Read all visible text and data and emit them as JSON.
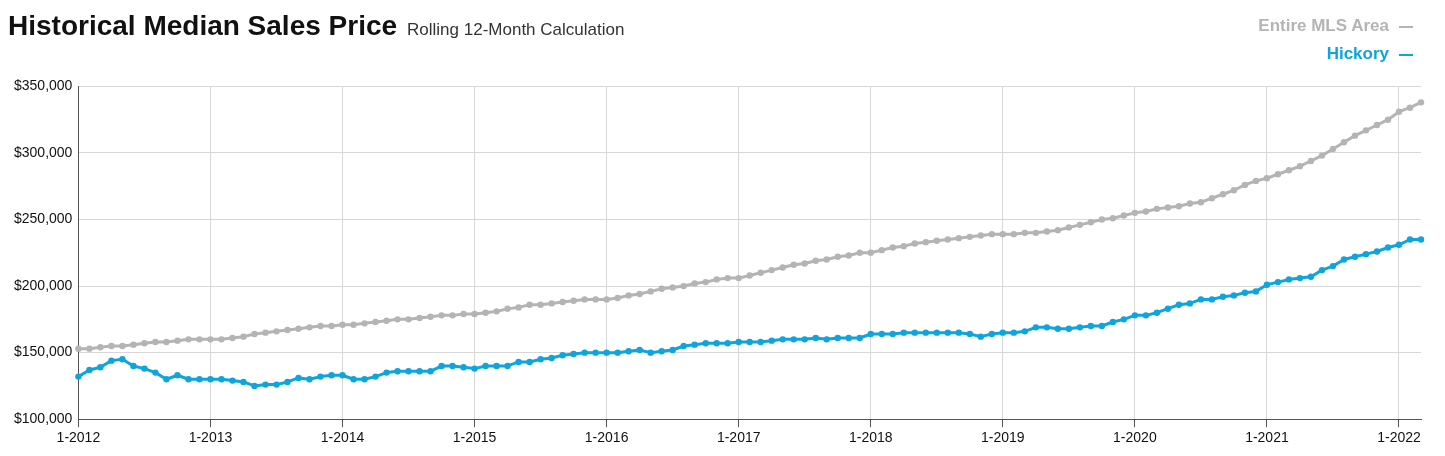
{
  "chart_data": {
    "type": "line",
    "title": "Historical Median Sales Price",
    "subtitle": "Rolling 12-Month Calculation",
    "categories": [
      "1-2012",
      null,
      null,
      null,
      null,
      null,
      null,
      null,
      null,
      null,
      null,
      null,
      "1-2013",
      null,
      null,
      null,
      null,
      null,
      null,
      null,
      null,
      null,
      null,
      null,
      "1-2014",
      null,
      null,
      null,
      null,
      null,
      null,
      null,
      null,
      null,
      null,
      null,
      "1-2015",
      null,
      null,
      null,
      null,
      null,
      null,
      null,
      null,
      null,
      null,
      null,
      "1-2016",
      null,
      null,
      null,
      null,
      null,
      null,
      null,
      null,
      null,
      null,
      null,
      "1-2017",
      null,
      null,
      null,
      null,
      null,
      null,
      null,
      null,
      null,
      null,
      null,
      "1-2018",
      null,
      null,
      null,
      null,
      null,
      null,
      null,
      null,
      null,
      null,
      null,
      "1-2019",
      null,
      null,
      null,
      null,
      null,
      null,
      null,
      null,
      null,
      null,
      null,
      "1-2020",
      null,
      null,
      null,
      null,
      null,
      null,
      null,
      null,
      null,
      null,
      null,
      "1-2021",
      null,
      null,
      null,
      null,
      null,
      null,
      null,
      null,
      null,
      null,
      null,
      "1-2022",
      null,
      null
    ],
    "series": [
      {
        "name": "Entire MLS Area",
        "color": "#b4b4b4",
        "values": [
          153000,
          153000,
          154000,
          155000,
          155000,
          156000,
          157000,
          158000,
          158000,
          159000,
          160000,
          160000,
          160000,
          160000,
          161000,
          162000,
          164000,
          165000,
          166000,
          167000,
          168000,
          169000,
          170000,
          170000,
          171000,
          171000,
          172000,
          173000,
          174000,
          175000,
          175000,
          176000,
          177000,
          178000,
          178000,
          179000,
          179000,
          180000,
          181000,
          183000,
          184000,
          186000,
          186000,
          187000,
          188000,
          189000,
          190000,
          190000,
          190000,
          191000,
          193000,
          194000,
          196000,
          198000,
          199000,
          200000,
          202000,
          203000,
          205000,
          206000,
          206000,
          208000,
          210000,
          212000,
          214000,
          216000,
          217000,
          219000,
          220000,
          222000,
          223000,
          225000,
          225000,
          227000,
          229000,
          230000,
          232000,
          233000,
          234000,
          235000,
          236000,
          237000,
          238000,
          239000,
          239000,
          239000,
          240000,
          240000,
          241000,
          242000,
          244000,
          246000,
          248000,
          250000,
          251000,
          253000,
          255000,
          256000,
          258000,
          259000,
          260000,
          262000,
          263000,
          266000,
          269000,
          272000,
          276000,
          279000,
          281000,
          284000,
          287000,
          290000,
          294000,
          298000,
          303000,
          308000,
          313000,
          317000,
          321000,
          325000,
          331000,
          334000,
          338000
        ]
      },
      {
        "name": "Hickory",
        "color": "#0ea5dc",
        "values": [
          132000,
          137000,
          139000,
          144000,
          145000,
          140000,
          138000,
          135000,
          130000,
          133000,
          130000,
          130000,
          130000,
          130000,
          129000,
          128000,
          125000,
          126000,
          126000,
          128000,
          131000,
          130000,
          132000,
          133000,
          133000,
          130000,
          130000,
          132000,
          135000,
          136000,
          136000,
          136000,
          136000,
          140000,
          140000,
          139000,
          138000,
          140000,
          140000,
          140000,
          143000,
          143000,
          145000,
          146000,
          148000,
          149000,
          150000,
          150000,
          150000,
          150000,
          151000,
          152000,
          150000,
          151000,
          152000,
          155000,
          156000,
          157000,
          157000,
          157000,
          158000,
          158000,
          158000,
          159000,
          160000,
          160000,
          160000,
          161000,
          160000,
          161000,
          161000,
          161000,
          164000,
          164000,
          164000,
          165000,
          165000,
          165000,
          165000,
          165000,
          165000,
          164000,
          162000,
          164000,
          165000,
          165000,
          166000,
          169000,
          169000,
          168000,
          168000,
          169000,
          170000,
          170000,
          173000,
          175000,
          178000,
          178000,
          180000,
          183000,
          186000,
          187000,
          190000,
          190000,
          192000,
          193000,
          195000,
          196000,
          201000,
          203000,
          205000,
          206000,
          207000,
          212000,
          215000,
          220000,
          222000,
          224000,
          226000,
          229000,
          231000,
          235000,
          235000
        ]
      }
    ],
    "ylim": [
      100000,
      350000
    ],
    "yticks": [
      {
        "value": 100000,
        "label": "$100,000"
      },
      {
        "value": 150000,
        "label": "$150,000"
      },
      {
        "value": 200000,
        "label": "$200,000"
      },
      {
        "value": 250000,
        "label": "$250,000"
      },
      {
        "value": 300000,
        "label": "$300,000"
      },
      {
        "value": 350000,
        "label": "$350,000"
      }
    ],
    "grid": true,
    "legend": "top right",
    "marker": "circle",
    "line_style": "solid"
  }
}
